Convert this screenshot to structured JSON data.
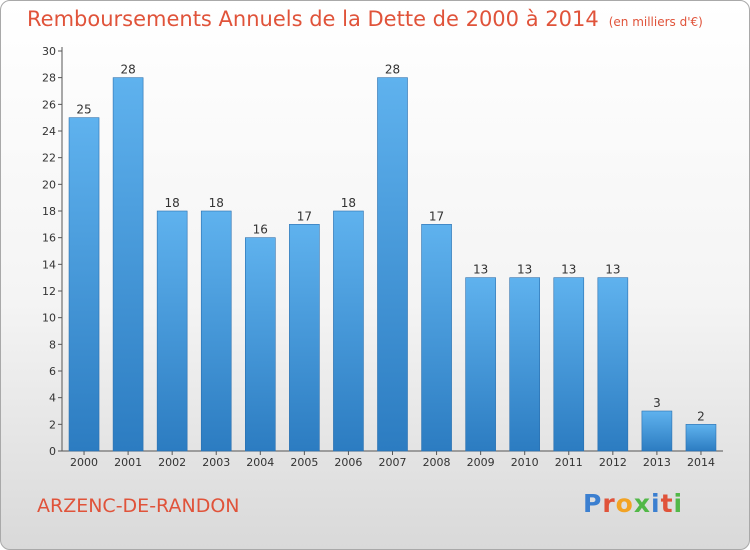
{
  "chart_data": {
    "type": "bar",
    "title": "Remboursements Annuels de la Dette de 2000 à 2014",
    "subtitle": "(en milliers d'€)",
    "categories": [
      "2000",
      "2001",
      "2002",
      "2003",
      "2004",
      "2005",
      "2006",
      "2007",
      "2008",
      "2009",
      "2010",
      "2011",
      "2012",
      "2013",
      "2014"
    ],
    "values": [
      25,
      28,
      18,
      18,
      16,
      17,
      18,
      28,
      17,
      13,
      13,
      13,
      13,
      3,
      2
    ],
    "ylim": [
      0,
      30
    ],
    "yticks": [
      0,
      2,
      4,
      6,
      8,
      10,
      12,
      14,
      16,
      18,
      20,
      22,
      24,
      26,
      28,
      30
    ],
    "grid": false,
    "bar_color": "#4a9ede",
    "bar_color_dark": "#2f7fc4"
  },
  "footer": {
    "location": "ARZENC-DE-RANDON",
    "logo": "Proxiti"
  },
  "colors": {
    "accent": "#e0533a"
  }
}
